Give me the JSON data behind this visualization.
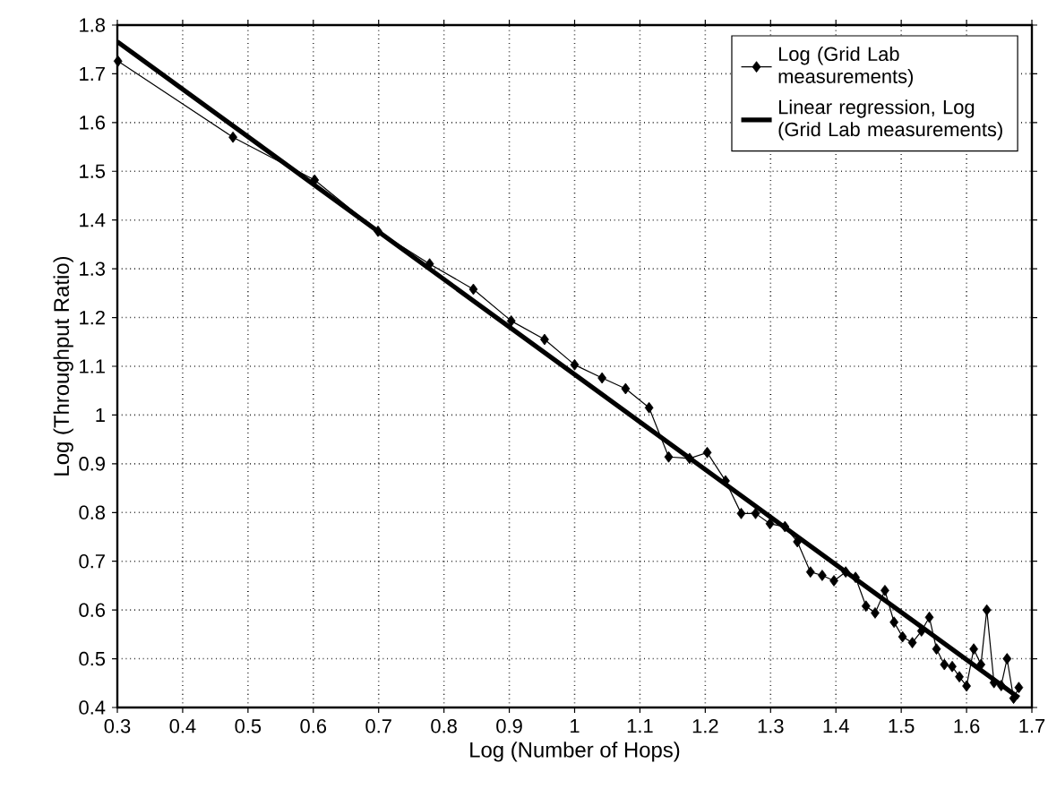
{
  "chart_data": {
    "type": "line",
    "xlabel": "Log (Number of Hops)",
    "ylabel": "Log (Throughput Ratio)",
    "xlim": [
      0.3,
      1.7
    ],
    "xticks": [
      0.3,
      0.4,
      0.5,
      0.6,
      0.7,
      0.8,
      0.9,
      1,
      1.1,
      1.2,
      1.3,
      1.4,
      1.5,
      1.6,
      1.7
    ],
    "ylim": [
      0.4,
      1.8
    ],
    "yticks": [
      0.4,
      0.5,
      0.6,
      0.7,
      0.8,
      0.9,
      1,
      1.1,
      1.2,
      1.3,
      1.4,
      1.5,
      1.6,
      1.7,
      1.8
    ],
    "grid": true,
    "legend": "top right",
    "series": [
      {
        "name": "Log (Grid Lab measurements)",
        "color": "#000000",
        "marker": "diamond",
        "line_style": "solid",
        "x": [
          0.301,
          0.477,
          0.602,
          0.699,
          0.778,
          0.845,
          0.903,
          0.954,
          1.0,
          1.042,
          1.078,
          1.114,
          1.144,
          1.176,
          1.203,
          1.231,
          1.255,
          1.277,
          1.299,
          1.322,
          1.341,
          1.361,
          1.379,
          1.397,
          1.415,
          1.43,
          1.446,
          1.46,
          1.475,
          1.489,
          1.502,
          1.517,
          1.531,
          1.543,
          1.554,
          1.566,
          1.578,
          1.589,
          1.6,
          1.611,
          1.622,
          1.631,
          1.642,
          1.653,
          1.662,
          1.672,
          1.68
        ],
        "values": [
          1.726,
          1.57,
          1.482,
          1.377,
          1.31,
          1.258,
          1.193,
          1.155,
          1.103,
          1.076,
          1.054,
          1.015,
          0.914,
          0.911,
          0.923,
          0.865,
          0.798,
          0.798,
          0.777,
          0.771,
          0.74,
          0.678,
          0.671,
          0.66,
          0.678,
          0.667,
          0.608,
          0.594,
          0.64,
          0.575,
          0.545,
          0.533,
          0.557,
          0.585,
          0.52,
          0.488,
          0.484,
          0.463,
          0.444,
          0.52,
          0.488,
          0.6,
          0.451,
          0.445,
          0.5,
          0.419,
          0.441
        ]
      },
      {
        "name": "Linear regression, Log (Grid Lab measurements)",
        "color": "#000000",
        "marker": "none",
        "line_style": "solid",
        "x": [
          0.3,
          1.68
        ],
        "values": [
          1.766,
          0.42
        ]
      }
    ]
  }
}
